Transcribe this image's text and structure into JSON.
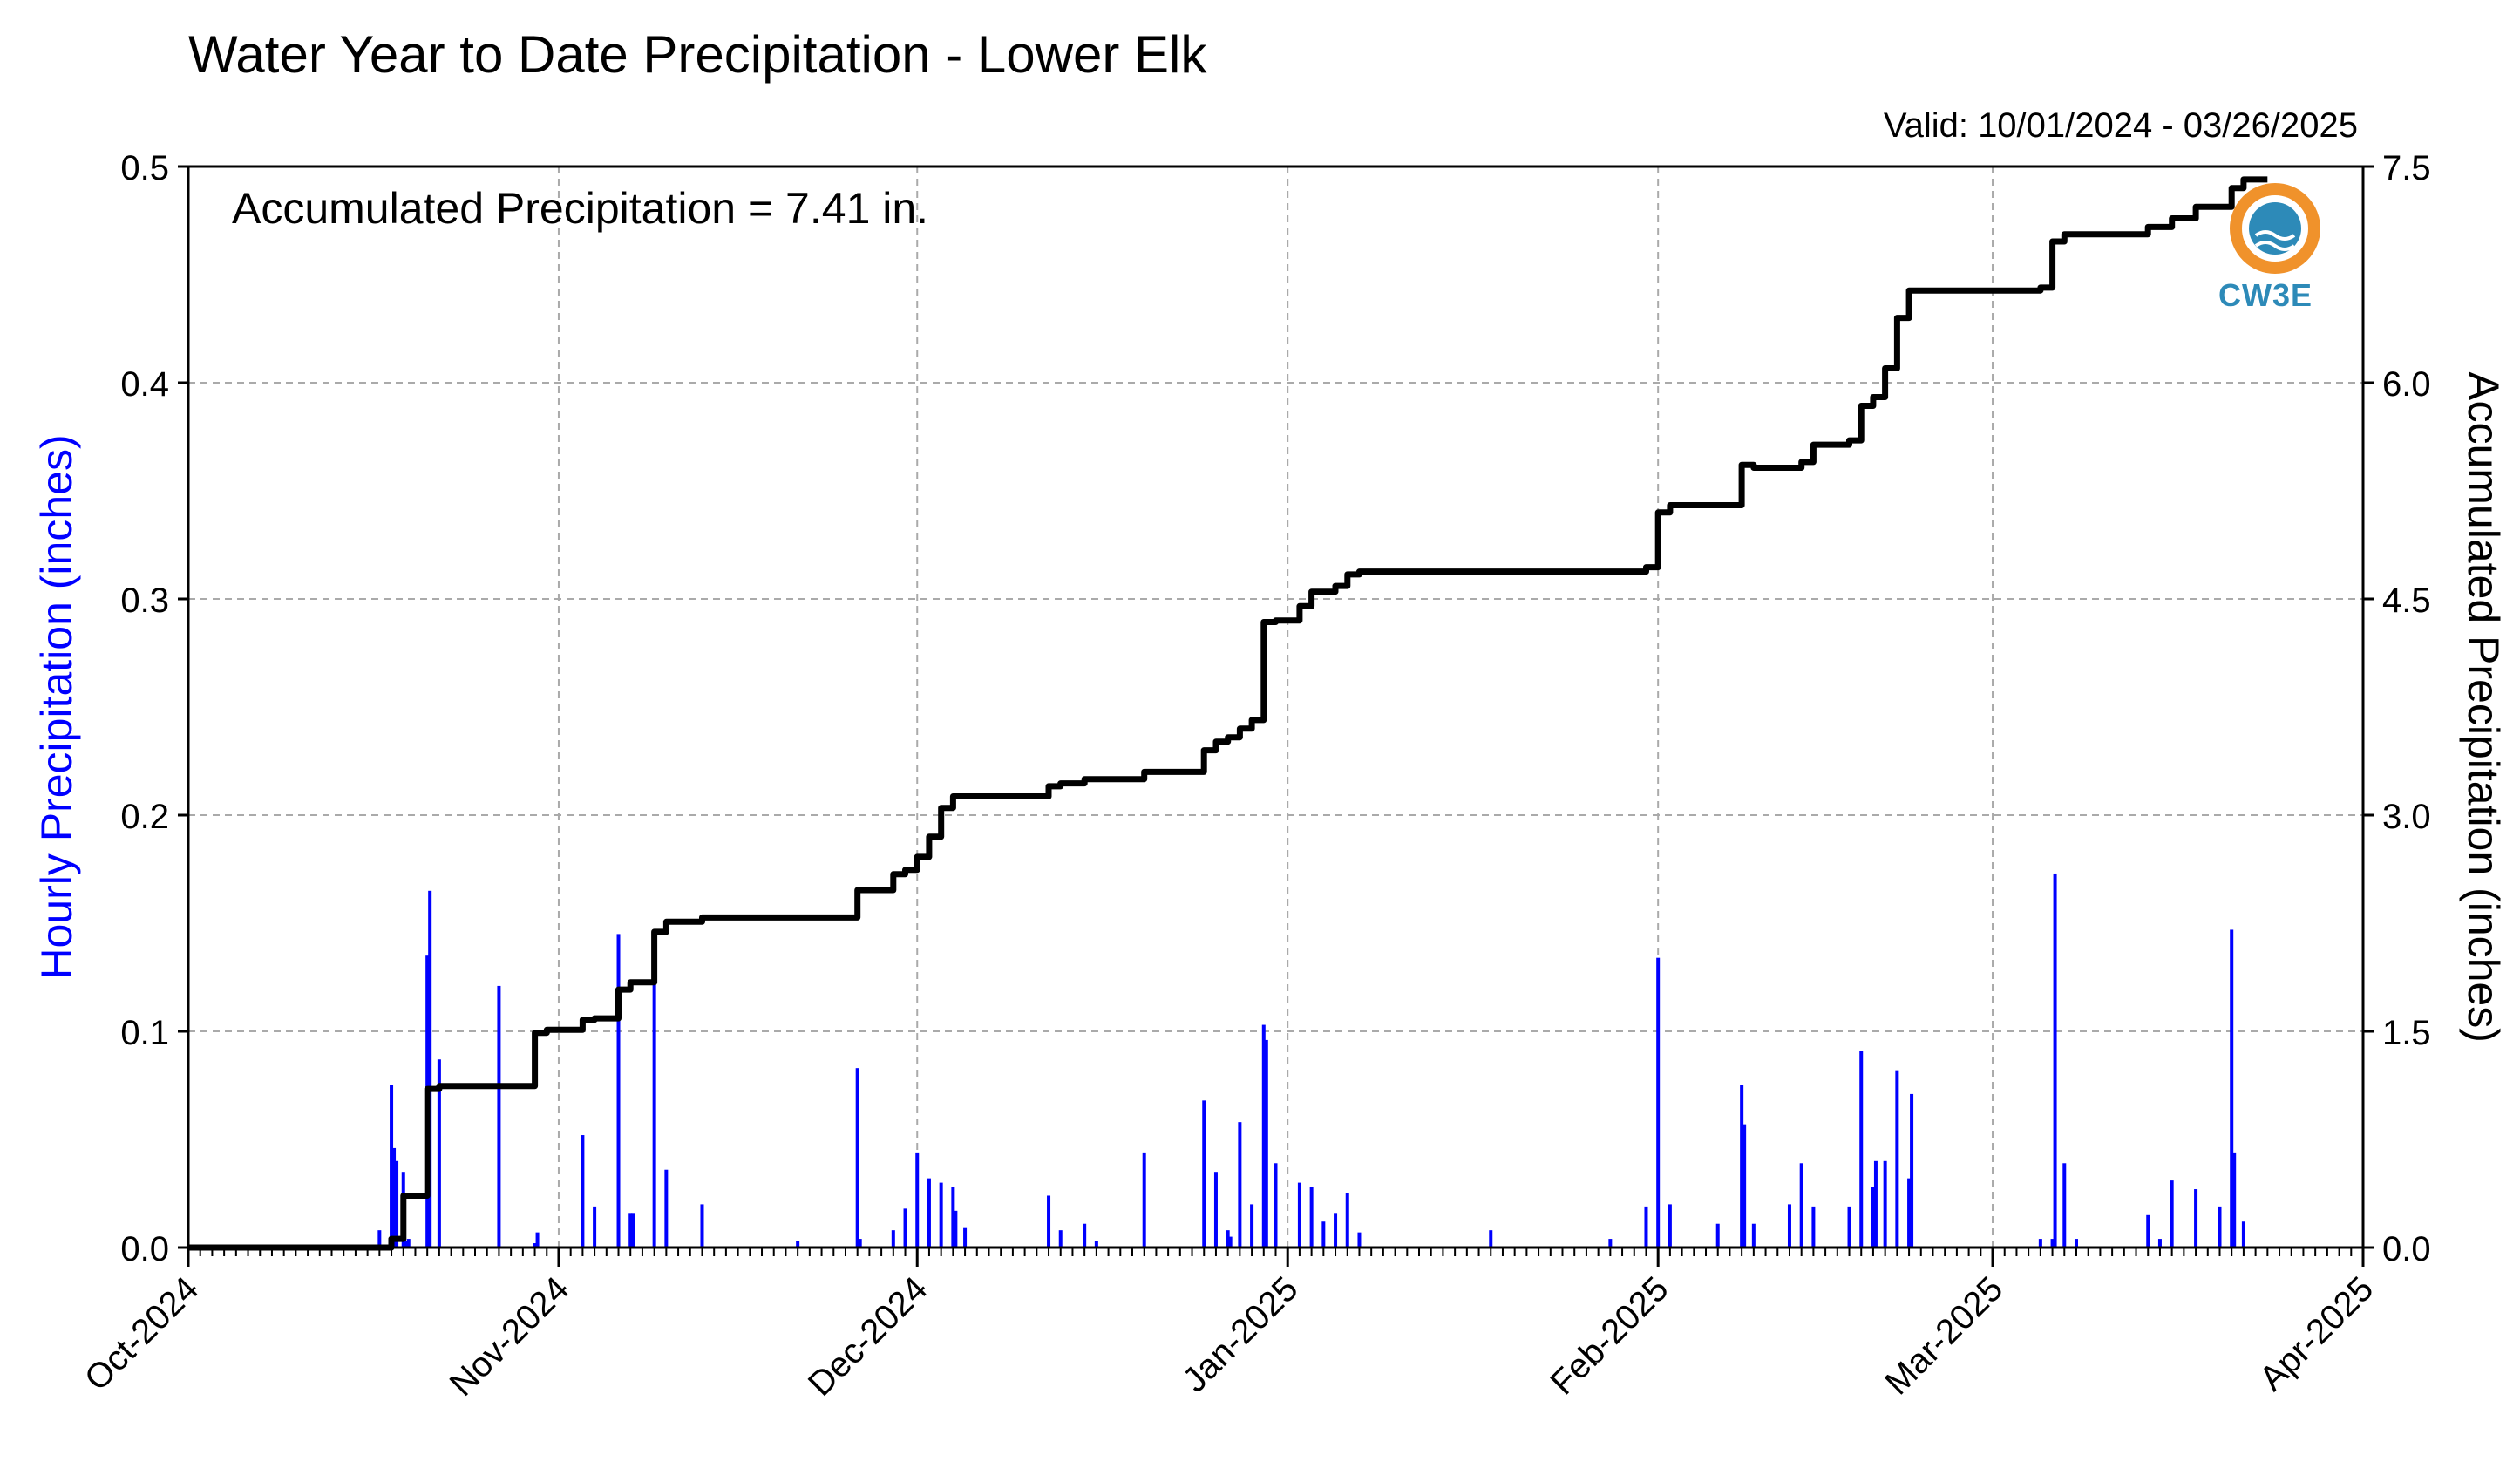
{
  "chart_data": {
    "type": "bar",
    "title": "Water Year to Date Precipitation - Lower Elk",
    "subtitle": "Valid: 10/01/2024 - 03/26/2025",
    "annotation": "Accumulated Precipitation = 7.41 in.",
    "ylabel_left": "Hourly Precipitation (inches)",
    "ylabel_right": "Accumulated Precipitation (inches)",
    "ylim_left": [
      0,
      0.5
    ],
    "ylim_right": [
      0,
      7.5
    ],
    "yticks_left": [
      "0.0",
      "0.1",
      "0.2",
      "0.3",
      "0.4",
      "0.5"
    ],
    "yticks_right": [
      "0.0",
      "1.5",
      "3.0",
      "4.5",
      "6.0",
      "7.5"
    ],
    "xlim": [
      "2024-10-01",
      "2025-04-01"
    ],
    "xticks": [
      {
        "date": "2024-10-01",
        "label": "Oct-2024"
      },
      {
        "date": "2024-11-01",
        "label": "Nov-2024"
      },
      {
        "date": "2024-12-01",
        "label": "Dec-2024"
      },
      {
        "date": "2025-01-01",
        "label": "Jan-2025"
      },
      {
        "date": "2025-02-01",
        "label": "Feb-2025"
      },
      {
        "date": "2025-03-01",
        "label": "Mar-2025"
      },
      {
        "date": "2025-04-01",
        "label": "Apr-2025"
      }
    ],
    "grid": true,
    "series": [
      {
        "type": "bar",
        "color": "#0000ff",
        "x": [
          "2024-10-17",
          "2024-10-18",
          "2024-10-18",
          "2024-10-18",
          "2024-10-19",
          "2024-10-19",
          "2024-10-19",
          "2024-10-21",
          "2024-10-21",
          "2024-10-22",
          "2024-10-27",
          "2024-10-30",
          "2024-10-30",
          "2024-11-03",
          "2024-11-04",
          "2024-11-06",
          "2024-11-07",
          "2024-11-07",
          "2024-11-09",
          "2024-11-10",
          "2024-11-13",
          "2024-11-21",
          "2024-11-26",
          "2024-11-26",
          "2024-11-29",
          "2024-11-30",
          "2024-12-01",
          "2024-12-02",
          "2024-12-03",
          "2024-12-04",
          "2024-12-04",
          "2024-12-05",
          "2024-12-12",
          "2024-12-13",
          "2024-12-15",
          "2024-12-16",
          "2024-12-20",
          "2024-12-25",
          "2024-12-26",
          "2024-12-27",
          "2024-12-27",
          "2024-12-28",
          "2024-12-29",
          "2024-12-30",
          "2024-12-30",
          "2024-12-31",
          "2025-01-02",
          "2025-01-03",
          "2025-01-04",
          "2025-01-05",
          "2025-01-06",
          "2025-01-07",
          "2025-01-18",
          "2025-01-28",
          "2025-01-31",
          "2025-02-01",
          "2025-02-02",
          "2025-02-06",
          "2025-02-08",
          "2025-02-08",
          "2025-02-09",
          "2025-02-12",
          "2025-02-13",
          "2025-02-14",
          "2025-02-17",
          "2025-02-18",
          "2025-02-19",
          "2025-02-19",
          "2025-02-20",
          "2025-02-21",
          "2025-02-22",
          "2025-02-22",
          "2025-03-05",
          "2025-03-06",
          "2025-03-06",
          "2025-03-07",
          "2025-03-08",
          "2025-03-14",
          "2025-03-15",
          "2025-03-16",
          "2025-03-18",
          "2025-03-20",
          "2025-03-21",
          "2025-03-21",
          "2025-03-22"
        ],
        "values": [
          0.008,
          0.075,
          0.046,
          0.04,
          0.035,
          0.003,
          0.004,
          0.135,
          0.165,
          0.087,
          0.121,
          0.002,
          0.007,
          0.052,
          0.019,
          0.145,
          0.016,
          0.016,
          0.147,
          0.036,
          0.02,
          0.003,
          0.083,
          0.004,
          0.008,
          0.018,
          0.044,
          0.032,
          0.03,
          0.028,
          0.017,
          0.009,
          0.024,
          0.008,
          0.011,
          0.003,
          0.044,
          0.068,
          0.035,
          0.008,
          0.005,
          0.058,
          0.02,
          0.103,
          0.096,
          0.039,
          0.03,
          0.028,
          0.012,
          0.016,
          0.025,
          0.007,
          0.008,
          0.004,
          0.019,
          0.134,
          0.02,
          0.011,
          0.075,
          0.057,
          0.011,
          0.02,
          0.039,
          0.019,
          0.019,
          0.091,
          0.028,
          0.04,
          0.04,
          0.082,
          0.032,
          0.071,
          0.004,
          0.004,
          0.173,
          0.039,
          0.004,
          0.015,
          0.004,
          0.031,
          0.027,
          0.019,
          0.147,
          0.044,
          0.012
        ]
      },
      {
        "type": "step",
        "color": "#000000",
        "x": [
          "2024-10-18",
          "2024-10-19",
          "2024-10-21",
          "2024-10-21",
          "2024-10-22",
          "2024-10-30",
          "2024-10-31",
          "2024-11-03",
          "2024-11-04",
          "2024-11-06",
          "2024-11-07",
          "2024-11-09",
          "2024-11-10",
          "2024-11-13",
          "2024-11-26",
          "2024-11-29",
          "2024-11-30",
          "2024-12-01",
          "2024-12-02",
          "2024-12-03",
          "2024-12-04",
          "2024-12-12",
          "2024-12-13",
          "2024-12-15",
          "2024-12-20",
          "2024-12-25",
          "2024-12-26",
          "2024-12-27",
          "2024-12-28",
          "2024-12-29",
          "2024-12-30",
          "2024-12-31",
          "2025-01-02",
          "2025-01-03",
          "2025-01-05",
          "2025-01-06",
          "2025-01-07",
          "2025-01-18",
          "2025-01-28",
          "2025-01-31",
          "2025-02-01",
          "2025-02-02",
          "2025-02-08",
          "2025-02-09",
          "2025-02-13",
          "2025-02-14",
          "2025-02-17",
          "2025-02-18",
          "2025-02-19",
          "2025-02-20",
          "2025-02-21",
          "2025-02-22",
          "2025-03-05",
          "2025-03-06",
          "2025-03-07",
          "2025-03-14",
          "2025-03-16",
          "2025-03-18",
          "2025-03-21",
          "2025-03-22",
          "2025-03-24"
        ],
        "values": [
          0.06,
          0.36,
          0.45,
          1.1,
          1.12,
          1.49,
          1.51,
          1.58,
          1.59,
          1.79,
          1.84,
          2.19,
          2.26,
          2.29,
          2.48,
          2.59,
          2.62,
          2.71,
          2.85,
          3.05,
          3.13,
          3.2,
          3.22,
          3.25,
          3.3,
          3.45,
          3.51,
          3.54,
          3.6,
          3.66,
          4.34,
          4.35,
          4.45,
          4.55,
          4.59,
          4.67,
          4.69,
          4.69,
          4.69,
          4.72,
          5.1,
          5.15,
          5.43,
          5.41,
          5.45,
          5.57,
          5.6,
          5.84,
          5.9,
          6.1,
          6.45,
          6.64,
          6.66,
          6.98,
          7.03,
          7.08,
          7.14,
          7.22,
          7.35,
          7.41,
          7.41
        ]
      }
    ]
  },
  "logo": {
    "text": "CW3E",
    "ring_color": "#f0922b",
    "drop_color": "#2d8ab8"
  }
}
